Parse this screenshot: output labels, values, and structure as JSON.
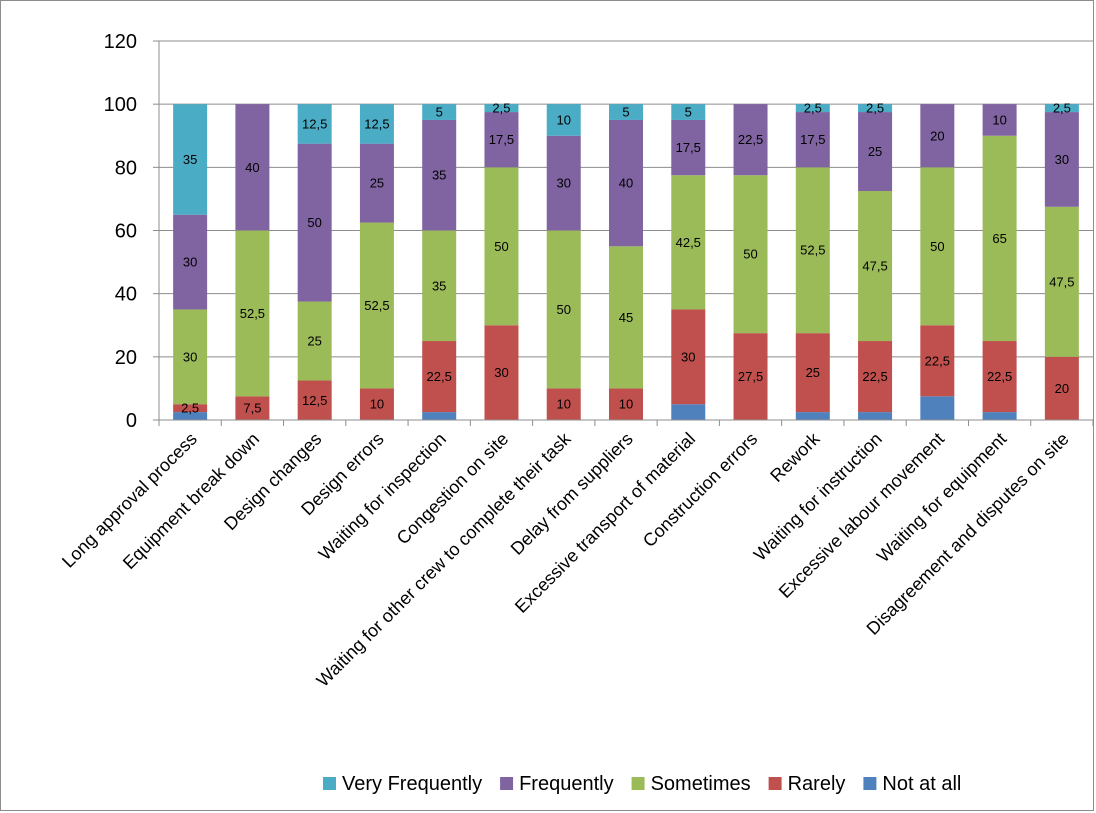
{
  "chart_data": {
    "type": "bar",
    "stacked": true,
    "categories": [
      "Long approval process",
      "Equipment break down",
      "Design changes",
      "Design errors",
      "Waiting for inspection",
      "Congestion on site",
      "Waiting for other crew to complete their task",
      "Delay from suppliers",
      "Excessive transport of material",
      "Construction errors",
      "Rework",
      "Waiting for instruction",
      "Excessive labour movement",
      "Waiting for equipment",
      "Disagreement and disputes on site"
    ],
    "series": [
      {
        "name": "Not at all",
        "color": "#4F81BD",
        "values": [
          2.5,
          0,
          0,
          0,
          2.5,
          0,
          0,
          0,
          5,
          0,
          2.5,
          2.5,
          7.5,
          2.5,
          0
        ],
        "labels": [
          "",
          "",
          "",
          "",
          "",
          "",
          "",
          "",
          "",
          "",
          "",
          "",
          "",
          "",
          ""
        ]
      },
      {
        "name": "Rarely",
        "color": "#C0504D",
        "values": [
          2.5,
          7.5,
          12.5,
          10,
          22.5,
          30,
          10,
          10,
          30,
          27.5,
          25,
          22.5,
          22.5,
          22.5,
          20
        ],
        "labels": [
          "2,5",
          "7,5",
          "12,5",
          "10",
          "22,5",
          "30",
          "10",
          "10",
          "30",
          "27,5",
          "25",
          "22,5",
          "22,5",
          "22,5",
          "20"
        ]
      },
      {
        "name": "Sometimes",
        "color": "#9BBB59",
        "values": [
          30,
          52.5,
          25,
          52.5,
          35,
          50,
          50,
          45,
          42.5,
          50,
          52.5,
          47.5,
          50,
          65,
          47.5
        ],
        "labels": [
          "30",
          "52,5",
          "25",
          "52,5",
          "35",
          "50",
          "50",
          "45",
          "42,5",
          "50",
          "52,5",
          "47,5",
          "50",
          "65",
          "47,5"
        ]
      },
      {
        "name": "Frequently",
        "color": "#8064A2",
        "values": [
          30,
          40,
          50,
          25,
          35,
          17.5,
          30,
          40,
          17.5,
          22.5,
          17.5,
          25,
          20,
          10,
          30
        ],
        "labels": [
          "30",
          "40",
          "50",
          "25",
          "35",
          "17,5",
          "30",
          "40",
          "17,5",
          "22,5",
          "17,5",
          "25",
          "20",
          "10",
          "30"
        ]
      },
      {
        "name": "Very Frequently",
        "color": "#4BACC6",
        "values": [
          35,
          0,
          12.5,
          12.5,
          5,
          2.5,
          10,
          5,
          5,
          0,
          2.5,
          2.5,
          0,
          0,
          2.5
        ],
        "labels": [
          "35",
          "",
          "12,5",
          "12,5",
          "5",
          "2,5",
          "10",
          "5",
          "5",
          "",
          "2,5",
          "2,5",
          "",
          "",
          "2,5"
        ]
      }
    ],
    "yticks": [
      "0",
      "20",
      "40",
      "60",
      "80",
      "100",
      "120"
    ],
    "ylim": [
      0,
      120
    ],
    "grid": true,
    "legend_position": "bottom-right",
    "legend_order": [
      "Very Frequently",
      "Frequently",
      "Sometimes",
      "Rarely",
      "Not at all"
    ]
  }
}
